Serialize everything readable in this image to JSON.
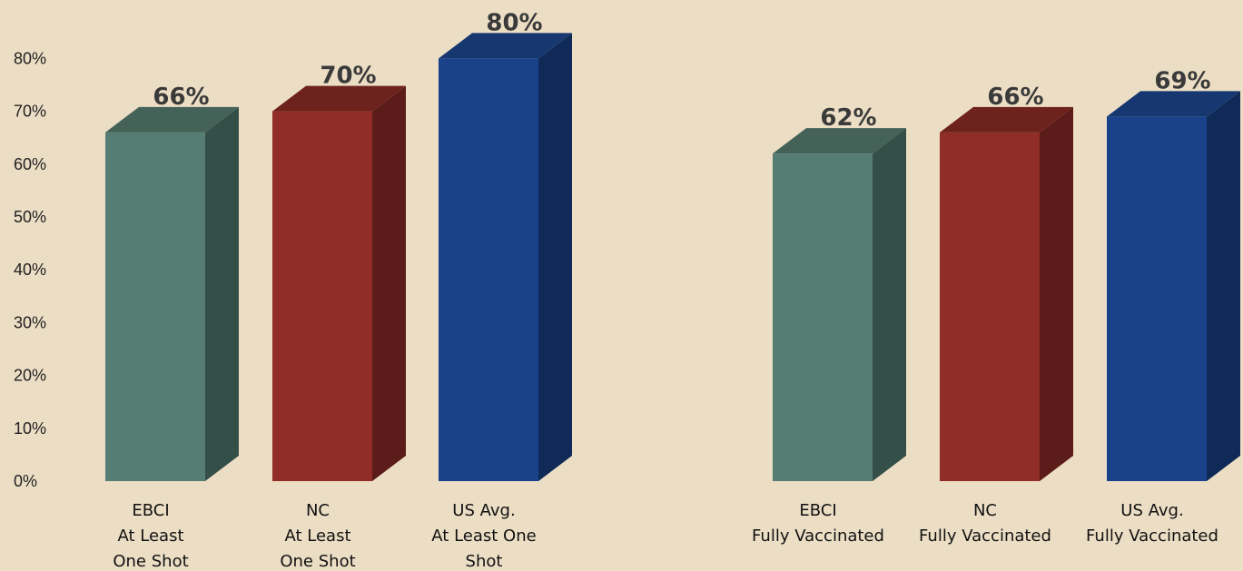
{
  "chart_data": {
    "type": "bar",
    "style": "3d-column",
    "y_ticks": [
      "0%",
      "10%",
      "20%",
      "30%",
      "40%",
      "50%",
      "60%",
      "70%",
      "80%"
    ],
    "ylim": [
      0,
      80
    ],
    "grid": false,
    "legend": "none",
    "bars": [
      {
        "label_lines": [
          "EBCI",
          "At Least",
          "One Shot"
        ],
        "value": 66,
        "value_label": "66%",
        "color": "teal"
      },
      {
        "label_lines": [
          "NC",
          "At Least",
          "One Shot"
        ],
        "value": 70,
        "value_label": "70%",
        "color": "red"
      },
      {
        "label_lines": [
          "US Avg.",
          "At Least One",
          "Shot"
        ],
        "value": 80,
        "value_label": "80%",
        "color": "blue"
      },
      {
        "label_lines": [
          "EBCI",
          "Fully Vaccinated"
        ],
        "value": 62,
        "value_label": "62%",
        "color": "teal"
      },
      {
        "label_lines": [
          "NC",
          "Fully Vaccinated"
        ],
        "value": 66,
        "value_label": "66%",
        "color": "red"
      },
      {
        "label_lines": [
          "US Avg.",
          "Fully Vaccinated"
        ],
        "value": 69,
        "value_label": "69%",
        "color": "blue"
      }
    ]
  },
  "colors": {
    "background": "#ecdec5",
    "teal": {
      "front": "#567d74",
      "side": "#344f47",
      "top": "#456258"
    },
    "red": {
      "front": "#8f2d26",
      "side": "#5c1d1a",
      "top": "#6d221d"
    },
    "blue": {
      "front": "#1a428a",
      "side": "#102a57",
      "top": "#163770"
    }
  }
}
